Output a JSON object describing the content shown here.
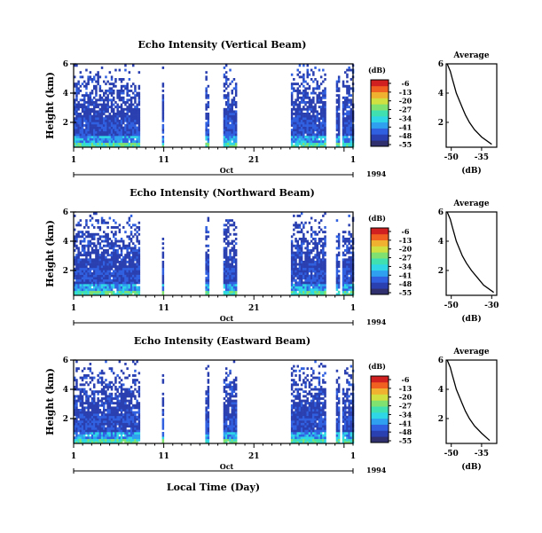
{
  "figure": {
    "xlabel": "Local Time (Day)",
    "month_label": "Oct",
    "year_label": "1994",
    "x_ticks": [
      "1",
      "11",
      "21",
      "1"
    ],
    "y_ticks": [
      "6",
      "4",
      "2"
    ],
    "ylabel": "Height (km)",
    "colorbar_unit": "(dB)",
    "colorbar_ticks": [
      "-6",
      "-13",
      "-20",
      "-27",
      "-34",
      "-41",
      "-48",
      "-55"
    ],
    "average_title": "Average",
    "average_xlabel": "(dB)",
    "average_y_ticks": [
      "6",
      "4",
      "2"
    ]
  },
  "chart_data": [
    {
      "type": "heatmap",
      "title": "Echo Intensity (Vertical Beam)",
      "xlabel": "",
      "ylabel": "Height (km)",
      "x_range_days": [
        1,
        32
      ],
      "ylim_km": [
        0.3,
        6.0
      ],
      "colorbar_range_db": [
        -55,
        -6
      ],
      "data_segments_days": [
        [
          1,
          8.3
        ],
        [
          10.8,
          10.9
        ],
        [
          15.6,
          16.0
        ],
        [
          17.6,
          19.0
        ],
        [
          25.1,
          28.8
        ],
        [
          30.1,
          30.4
        ],
        [
          30.8,
          32
        ]
      ],
      "profile": {
        "type": "line",
        "title": "Average",
        "xlabel": "(dB)",
        "x_ticks": [
          "-50",
          "-35"
        ],
        "xlim": [
          -52.5,
          -27.5
        ],
        "height_km": [
          6.0,
          5.5,
          5.0,
          4.5,
          4.0,
          3.5,
          3.0,
          2.5,
          2.0,
          1.5,
          1.0,
          0.5
        ],
        "value_db": [
          -52,
          -50.5,
          -49.5,
          -48.5,
          -47.5,
          -46,
          -44.5,
          -43,
          -41,
          -38.5,
          -35,
          -30
        ]
      }
    },
    {
      "type": "heatmap",
      "title": "Echo Intensity (Northward Beam)",
      "xlabel": "",
      "ylabel": "Height (km)",
      "x_range_days": [
        1,
        32
      ],
      "ylim_km": [
        0.3,
        6.0
      ],
      "colorbar_range_db": [
        -55,
        -6
      ],
      "data_segments_days": [
        [
          1,
          8.3
        ],
        [
          10.8,
          10.9
        ],
        [
          15.6,
          16.0
        ],
        [
          17.6,
          19.0
        ],
        [
          25.1,
          28.8
        ],
        [
          30.1,
          30.4
        ],
        [
          30.8,
          32
        ]
      ],
      "profile": {
        "type": "line",
        "title": "Average",
        "xlabel": "(dB)",
        "x_ticks": [
          "-50",
          "-30"
        ],
        "xlim": [
          -52.5,
          -27.5
        ],
        "height_km": [
          6.0,
          5.5,
          5.0,
          4.5,
          4.0,
          3.5,
          3.0,
          2.5,
          2.0,
          1.5,
          1.0,
          0.5
        ],
        "value_db": [
          -52,
          -50.5,
          -49.5,
          -48.5,
          -47.5,
          -46,
          -44.5,
          -42.5,
          -40,
          -37,
          -34,
          -29
        ]
      }
    },
    {
      "type": "heatmap",
      "title": "Echo Intensity (Eastward Beam)",
      "xlabel": "Local Time (Day)",
      "ylabel": "Height (km)",
      "x_range_days": [
        1,
        32
      ],
      "ylim_km": [
        0.3,
        6.0
      ],
      "colorbar_range_db": [
        -55,
        -6
      ],
      "data_segments_days": [
        [
          1,
          8.3
        ],
        [
          10.8,
          10.9
        ],
        [
          15.6,
          16.0
        ],
        [
          17.6,
          19.0
        ],
        [
          25.1,
          28.8
        ],
        [
          30.1,
          30.4
        ],
        [
          30.8,
          32
        ]
      ],
      "profile": {
        "type": "line",
        "title": "Average",
        "xlabel": "(dB)",
        "x_ticks": [
          "-50",
          "-35"
        ],
        "xlim": [
          -52.5,
          -27.5
        ],
        "height_km": [
          6.0,
          5.5,
          5.0,
          4.5,
          4.0,
          3.5,
          3.0,
          2.5,
          2.0,
          1.5,
          1.0,
          0.5
        ],
        "value_db": [
          -52,
          -50.5,
          -49.5,
          -48.5,
          -47.5,
          -46,
          -44.5,
          -43,
          -41,
          -38.5,
          -35,
          -31
        ]
      }
    }
  ],
  "colors": {
    "palette": [
      "#30306e",
      "#2a3fb0",
      "#3060e0",
      "#2fa0f0",
      "#2fd6e6",
      "#40e0b0",
      "#80e070",
      "#d0e040",
      "#f0b030",
      "#f06020",
      "#d02020"
    ],
    "axis": "#000000"
  }
}
